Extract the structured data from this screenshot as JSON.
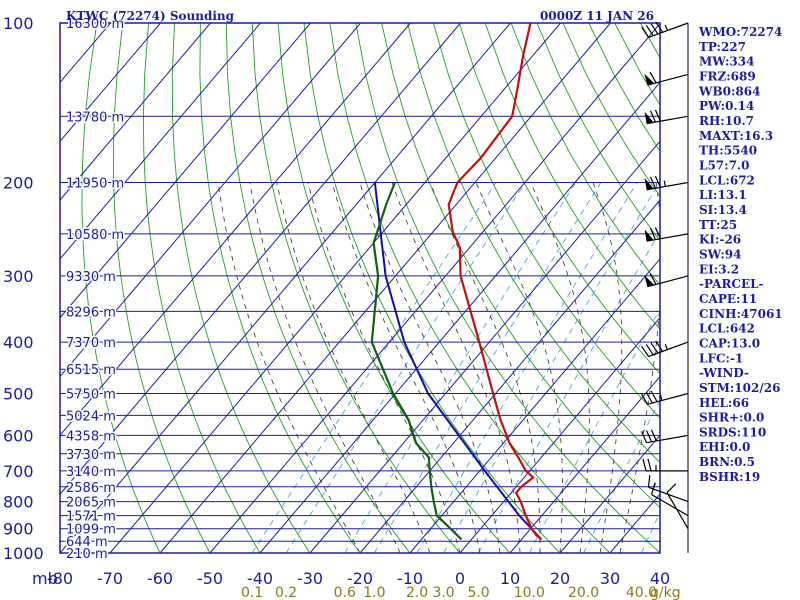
{
  "title": "KTWC (72274) Sounding",
  "valid_time": "0000Z 11 JAN 26",
  "axis_unit_pressure": "mb",
  "axis_unit_mixing_ratio": "g/kg",
  "pressure_labels": [
    "100",
    "200",
    "300",
    "400",
    "500",
    "600",
    "700",
    "800",
    "900",
    "1000"
  ],
  "height_labels": [
    {
      "p": 100,
      "text": "16300 m"
    },
    {
      "p": 150,
      "text": "13780 m"
    },
    {
      "p": 200,
      "text": "11950 m"
    },
    {
      "p": 250,
      "text": "10580 m"
    },
    {
      "p": 300,
      "text": "9330 m"
    },
    {
      "p": 350,
      "text": "8296 m"
    },
    {
      "p": 400,
      "text": "7370 m"
    },
    {
      "p": 450,
      "text": "6515 m"
    },
    {
      "p": 500,
      "text": "5750 m"
    },
    {
      "p": 550,
      "text": "5024 m"
    },
    {
      "p": 600,
      "text": "4358 m"
    },
    {
      "p": 650,
      "text": "3730 m"
    },
    {
      "p": 700,
      "text": "3140 m"
    },
    {
      "p": 750,
      "text": "2586 m"
    },
    {
      "p": 800,
      "text": "2065 m"
    },
    {
      "p": 850,
      "text": "1571 m"
    },
    {
      "p": 900,
      "text": "1099 m"
    },
    {
      "p": 950,
      "text": "644 m"
    },
    {
      "p": 1000,
      "text": "210 m"
    }
  ],
  "temp_ticks": [
    -80,
    -70,
    -60,
    -50,
    -40,
    -30,
    -20,
    -10,
    0,
    10,
    20,
    30,
    40
  ],
  "mixing_ratio_labels": [
    "0.1",
    "0.2",
    "0.6",
    "1.0",
    "2.0",
    "3.0",
    "5.0",
    "10.0",
    "20.0",
    "40.0"
  ],
  "indices": [
    "WMO:72274",
    "TP:227",
    "MW:334",
    "FRZ:689",
    "WB0:864",
    "PW:0.14",
    "RH:10.7",
    "MAXT:16.3",
    "TH:5540",
    "L57:7.0",
    "LCL:672",
    "LI:13.1",
    "SI:13.4",
    "TT:25",
    "KI:-26",
    "SW:94",
    "EI:3.2",
    "-PARCEL-",
    "CAPE:11",
    "CINH:47061",
    "LCL:642",
    "CAP:13.0",
    "LFC:-1",
    "-WIND-",
    "STM:102/26",
    "HEL:66",
    "SHR+:0.0",
    "SRDS:110",
    "EHI:0.0",
    "BRN:0.5",
    "BSHR:19"
  ],
  "colors": {
    "frame": "#1c1ca0",
    "isotherm": "#1c1ca0",
    "isobar": "#1c1ca0",
    "dry_adiabat": "#20a020",
    "moist_adiabat": "#303030",
    "mixing_ratio": "#4aa3e0",
    "temperature": "#c01010",
    "dewpoint": "#106010",
    "parcel": "#1010a0",
    "mixing_label": "#8a7a1a",
    "wind_barb": "#000000"
  },
  "chart_data": {
    "type": "skew-t",
    "ylim_mb": [
      100,
      1000
    ],
    "xlim_c": [
      -80,
      40
    ],
    "temperature": [
      {
        "p": 943,
        "t": 14.0
      },
      {
        "p": 925,
        "t": 12.2
      },
      {
        "p": 900,
        "t": 10.2
      },
      {
        "p": 850,
        "t": 6.8
      },
      {
        "p": 800,
        "t": 3.4
      },
      {
        "p": 770,
        "t": 1.0
      },
      {
        "p": 750,
        "t": 1.0
      },
      {
        "p": 720,
        "t": 1.8
      },
      {
        "p": 700,
        "t": -0.8
      },
      {
        "p": 660,
        "t": -4.6
      },
      {
        "p": 620,
        "t": -8.8
      },
      {
        "p": 560,
        "t": -14.6
      },
      {
        "p": 500,
        "t": -20.5
      },
      {
        "p": 400,
        "t": -32.0
      },
      {
        "p": 300,
        "t": -47.0
      },
      {
        "p": 265,
        "t": -52.0
      },
      {
        "p": 248,
        "t": -56.0
      },
      {
        "p": 220,
        "t": -61.5
      },
      {
        "p": 200,
        "t": -63.5
      },
      {
        "p": 180,
        "t": -63.0
      },
      {
        "p": 150,
        "t": -63.8
      },
      {
        "p": 135,
        "t": -67.0
      },
      {
        "p": 115,
        "t": -72.0
      },
      {
        "p": 100,
        "t": -76.0
      }
    ],
    "dewpoint": [
      {
        "p": 943,
        "t": -2.0
      },
      {
        "p": 900,
        "t": -6.0
      },
      {
        "p": 850,
        "t": -11.0
      },
      {
        "p": 800,
        "t": -14.0
      },
      {
        "p": 750,
        "t": -17.0
      },
      {
        "p": 700,
        "t": -20.0
      },
      {
        "p": 660,
        "t": -22.5
      },
      {
        "p": 620,
        "t": -27.5
      },
      {
        "p": 560,
        "t": -33.0
      },
      {
        "p": 500,
        "t": -40.5
      },
      {
        "p": 400,
        "t": -53.5
      },
      {
        "p": 300,
        "t": -63.5
      },
      {
        "p": 260,
        "t": -70.0
      },
      {
        "p": 220,
        "t": -74.0
      },
      {
        "p": 200,
        "t": -76.0
      }
    ],
    "parcel": [
      {
        "p": 943,
        "t": 14.0
      },
      {
        "p": 850,
        "t": 5.5
      },
      {
        "p": 700,
        "t": -9.0
      },
      {
        "p": 500,
        "t": -33.5
      },
      {
        "p": 400,
        "t": -47.0
      },
      {
        "p": 300,
        "t": -62.0
      },
      {
        "p": 200,
        "t": -80.0
      }
    ],
    "wind_barbs": [
      {
        "p": 100,
        "dir": 250,
        "spd": 45
      },
      {
        "p": 125,
        "dir": 255,
        "spd": 60
      },
      {
        "p": 150,
        "dir": 260,
        "spd": 70
      },
      {
        "p": 200,
        "dir": 260,
        "spd": 75
      },
      {
        "p": 250,
        "dir": 260,
        "spd": 70
      },
      {
        "p": 300,
        "dir": 255,
        "spd": 60
      },
      {
        "p": 400,
        "dir": 250,
        "spd": 45
      },
      {
        "p": 500,
        "dir": 255,
        "spd": 35
      },
      {
        "p": 600,
        "dir": 260,
        "spd": 30
      },
      {
        "p": 700,
        "dir": 270,
        "spd": 25
      },
      {
        "p": 800,
        "dir": 290,
        "spd": 15
      },
      {
        "p": 850,
        "dir": 300,
        "spd": 10
      },
      {
        "p": 900,
        "dir": 330,
        "spd": 10
      }
    ]
  }
}
